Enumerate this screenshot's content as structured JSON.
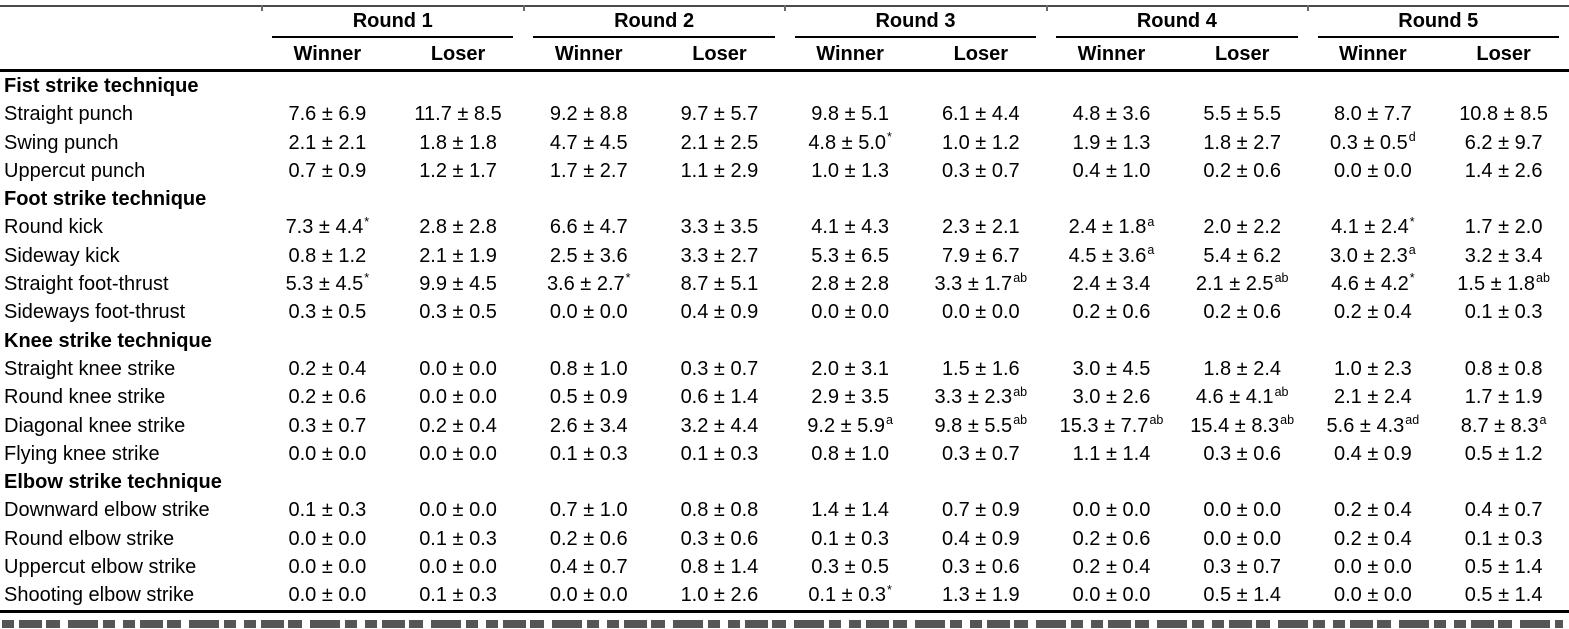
{
  "colors": {
    "background": "#ffffff",
    "text": "#000000",
    "rule": "#000000"
  },
  "table": {
    "corner_header": "",
    "rounds": [
      "Round 1",
      "Round 2",
      "Round 3",
      "Round 4",
      "Round 5"
    ],
    "subcolumns": [
      "Winner",
      "Loser"
    ],
    "sections": [
      {
        "label": "Fist strike technique",
        "rows": [
          {
            "label": "Straight punch",
            "values": [
              "7.6 ± 6.9",
              "11.7 ± 8.5",
              "9.2 ± 8.8",
              "9.7 ± 5.7",
              "9.8 ± 5.1",
              "6.1 ± 4.4",
              "4.8 ± 3.6",
              "5.5 ± 5.5",
              "8.0 ± 7.7",
              "10.8 ± 8.5"
            ]
          },
          {
            "label": "Swing punch",
            "values": [
              "2.1 ± 2.1",
              "1.8 ± 1.8",
              "4.7 ± 4.5",
              "2.1 ± 2.5",
              {
                "m": "4.8 ± 5.0",
                "s": "*"
              },
              "1.0 ± 1.2",
              "1.9 ± 1.3",
              "1.8 ± 2.7",
              {
                "m": "0.3 ± 0.5",
                "s": "d"
              },
              "6.2 ± 9.7"
            ]
          },
          {
            "label": "Uppercut punch",
            "values": [
              "0.7 ± 0.9",
              "1.2 ± 1.7",
              "1.7 ± 2.7",
              "1.1 ± 2.9",
              "1.0 ± 1.3",
              "0.3 ± 0.7",
              "0.4 ± 1.0",
              "0.2 ± 0.6",
              "0.0 ± 0.0",
              "1.4 ± 2.6"
            ]
          }
        ]
      },
      {
        "label": "Foot strike technique",
        "rows": [
          {
            "label": "Round kick",
            "values": [
              {
                "m": "7.3 ± 4.4",
                "s": "*"
              },
              "2.8 ± 2.8",
              "6.6 ± 4.7",
              "3.3 ± 3.5",
              "4.1 ± 4.3",
              "2.3 ± 2.1",
              {
                "m": "2.4 ± 1.8",
                "s": "a"
              },
              "2.0 ± 2.2",
              {
                "m": "4.1 ± 2.4",
                "s": "*"
              },
              "1.7 ± 2.0"
            ]
          },
          {
            "label": "Sideway kick",
            "values": [
              "0.8 ± 1.2",
              "2.1 ± 1.9",
              "2.5 ± 3.6",
              "3.3 ± 2.7",
              "5.3 ± 6.5",
              "7.9 ± 6.7",
              {
                "m": "4.5 ± 3.6",
                "s": "a"
              },
              "5.4 ± 6.2",
              {
                "m": "3.0 ± 2.3",
                "s": "a"
              },
              "3.2 ± 3.4"
            ]
          },
          {
            "label": "Straight foot-thrust",
            "values": [
              {
                "m": "5.3 ± 4.5",
                "s": "*"
              },
              "9.9 ± 4.5",
              {
                "m": "3.6 ± 2.7",
                "s": "*"
              },
              "8.7 ± 5.1",
              "2.8 ± 2.8",
              {
                "m": "3.3 ± 1.7",
                "s": "ab"
              },
              "2.4 ± 3.4",
              {
                "m": "2.1 ± 2.5",
                "s": "ab"
              },
              {
                "m": "4.6 ± 4.2",
                "s": "*"
              },
              {
                "m": "1.5 ± 1.8",
                "s": "ab"
              }
            ]
          },
          {
            "label": "Sideways foot-thrust",
            "values": [
              "0.3 ± 0.5",
              "0.3 ± 0.5",
              "0.0 ± 0.0",
              "0.4 ± 0.9",
              "0.0 ± 0.0",
              "0.0 ± 0.0",
              "0.2 ± 0.6",
              "0.2 ± 0.6",
              "0.2 ± 0.4",
              "0.1 ± 0.3"
            ]
          }
        ]
      },
      {
        "label": "Knee strike technique",
        "rows": [
          {
            "label": "Straight knee strike",
            "values": [
              "0.2 ± 0.4",
              "0.0 ± 0.0",
              "0.8 ± 1.0",
              "0.3 ± 0.7",
              "2.0 ± 3.1",
              "1.5 ± 1.6",
              "3.0 ± 4.5",
              "1.8 ± 2.4",
              "1.0 ± 2.3",
              "0.8 ± 0.8"
            ]
          },
          {
            "label": "Round knee strike",
            "values": [
              "0.2 ± 0.6",
              "0.0 ± 0.0",
              "0.5 ± 0.9",
              "0.6 ± 1.4",
              "2.9 ± 3.5",
              {
                "m": "3.3 ± 2.3",
                "s": "ab"
              },
              "3.0 ± 2.6",
              {
                "m": "4.6 ± 4.1",
                "s": "ab"
              },
              "2.1 ± 2.4",
              "1.7 ± 1.9"
            ]
          },
          {
            "label": "Diagonal knee strike",
            "values": [
              "0.3 ± 0.7",
              "0.2 ± 0.4",
              "2.6 ± 3.4",
              "3.2 ± 4.4",
              {
                "m": "9.2 ± 5.9",
                "s": "a"
              },
              {
                "m": "9.8 ± 5.5",
                "s": "ab"
              },
              {
                "m": "15.3 ± 7.7",
                "s": "ab"
              },
              {
                "m": "15.4 ± 8.3",
                "s": "ab"
              },
              {
                "m": "5.6 ± 4.3",
                "s": "ad"
              },
              {
                "m": "8.7 ± 8.3",
                "s": "a"
              }
            ]
          },
          {
            "label": "Flying knee strike",
            "values": [
              "0.0 ± 0.0",
              "0.0 ± 0.0",
              "0.1 ± 0.3",
              "0.1 ± 0.3",
              "0.8 ± 1.0",
              "0.3 ± 0.7",
              "1.1 ± 1.4",
              "0.3 ± 0.6",
              "0.4 ± 0.9",
              "0.5 ± 1.2"
            ]
          }
        ]
      },
      {
        "label": "Elbow strike technique",
        "rows": [
          {
            "label": "Downward elbow strike",
            "values": [
              "0.1 ± 0.3",
              "0.0 ± 0.0",
              "0.7 ± 1.0",
              "0.8 ± 0.8",
              "1.4 ± 1.4",
              "0.7 ± 0.9",
              "0.0 ± 0.0",
              "0.0 ± 0.0",
              "0.2 ± 0.4",
              "0.4 ± 0.7"
            ]
          },
          {
            "label": "Round elbow strike",
            "values": [
              "0.0 ± 0.0",
              "0.1 ± 0.3",
              "0.2 ± 0.6",
              "0.3 ± 0.6",
              "0.1 ± 0.3",
              "0.4 ± 0.9",
              "0.2 ± 0.6",
              "0.0 ± 0.0",
              "0.2 ± 0.4",
              "0.1 ± 0.3"
            ]
          },
          {
            "label": "Uppercut elbow strike",
            "values": [
              "0.0 ± 0.0",
              "0.0 ± 0.0",
              "0.4 ± 0.7",
              "0.8 ± 1.4",
              "0.3 ± 0.5",
              "0.3 ± 0.6",
              "0.2 ± 0.4",
              "0.3 ± 0.7",
              "0.0 ± 0.0",
              "0.5 ± 1.4"
            ]
          },
          {
            "label": "Shooting elbow strike",
            "values": [
              "0.0 ± 0.0",
              "0.1 ± 0.3",
              "0.0 ± 0.0",
              "1.0 ± 2.6",
              {
                "m": "0.1 ± 0.3",
                "s": "*"
              },
              "1.3 ± 1.9",
              "0.0 ± 0.0",
              "0.5 ± 1.4",
              "0.0 ± 0.0",
              "0.5 ± 1.4"
            ]
          }
        ]
      }
    ]
  }
}
